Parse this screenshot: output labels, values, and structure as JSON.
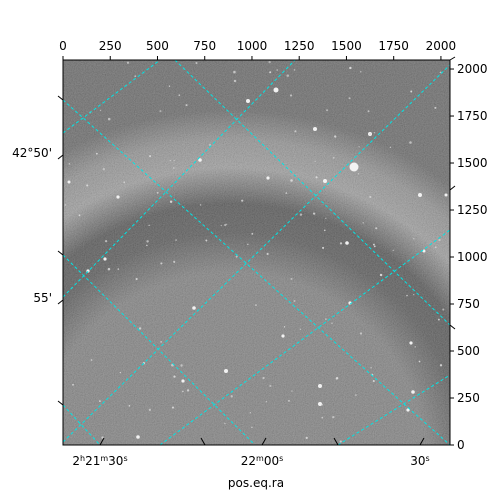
{
  "chart_data": {
    "type": "image",
    "xlabel": "pos.eq.ra",
    "ylabel": "",
    "pixel_axes": {
      "x": {
        "range": [
          0,
          2048
        ],
        "ticks": [
          0,
          250,
          500,
          750,
          1000,
          1250,
          1500,
          1750,
          2000
        ],
        "tick_labels": [
          "0",
          "250",
          "500",
          "750",
          "1000",
          "1250",
          "1500",
          "1750",
          "2000"
        ]
      },
      "y": {
        "range": [
          0,
          2048
        ],
        "ticks": [
          0,
          250,
          500,
          750,
          1000,
          1250,
          1500,
          1750,
          2000
        ],
        "tick_labels": [
          "0",
          "250",
          "500",
          "750",
          "1000",
          "1250",
          "1500",
          "1750",
          "2000"
        ]
      }
    },
    "world_axes": {
      "ra_ticks": [
        {
          "label": "2h21m30s",
          "base": "2",
          "h": "h",
          "m_val": "21",
          "m": "m",
          "s_val": "30",
          "s": "s"
        },
        {
          "label": "22m00s",
          "base": "22",
          "m": "m",
          "s_val": "00",
          "s": "s"
        },
        {
          "label": "30s",
          "base": "30",
          "s": "s"
        }
      ],
      "dec_ticks": [
        "42°50'",
        "55'"
      ]
    },
    "grid": {
      "color": "#00e5e5",
      "style": "dashed"
    },
    "colormap": "gray"
  }
}
